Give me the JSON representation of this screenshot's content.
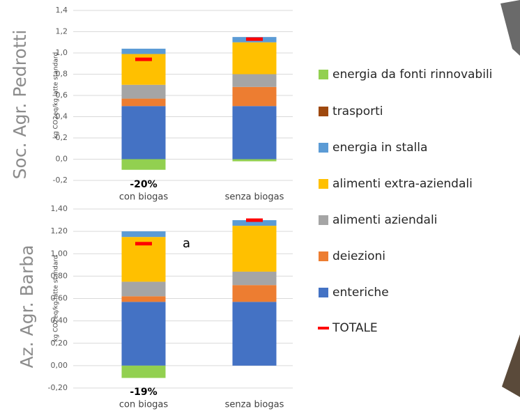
{
  "chart_data": [
    {
      "type": "stacked_bar",
      "title": "Soc. Agr. Pedrotti",
      "ylabel": "kg CO2eq/kg latte standard",
      "categories": [
        "con biogas",
        "senza biogas"
      ],
      "ylim": [
        -0.2,
        1.4
      ],
      "yticks": [
        {
          "value": -0.2,
          "label": "-0,2"
        },
        {
          "value": 0,
          "label": "0,0"
        },
        {
          "value": 0.2,
          "label": "0,2"
        },
        {
          "value": 0.4,
          "label": "0,4"
        },
        {
          "value": 0.6,
          "label": "0,6"
        },
        {
          "value": 0.8,
          "label": "0,8"
        },
        {
          "value": 1.0,
          "label": "1,0"
        },
        {
          "value": 1.2,
          "label": "1,2"
        },
        {
          "value": 1.4,
          "label": "1,4"
        }
      ],
      "grid": true,
      "series": [
        {
          "name": "energia da fonti rinnovabili",
          "color": "#92d050",
          "values": [
            -0.1,
            -0.02
          ]
        },
        {
          "name": "trasporti",
          "color": "#9e480e",
          "values": [
            0,
            0
          ]
        },
        {
          "name": "energia in stalla",
          "color": "#5b9bd5",
          "values": [
            0.05,
            0.05
          ]
        },
        {
          "name": "alimenti extra-aziendali",
          "color": "#ffc000",
          "values": [
            0.29,
            0.3
          ]
        },
        {
          "name": "alimenti aziendali",
          "color": "#a5a5a5",
          "values": [
            0.13,
            0.12
          ]
        },
        {
          "name": "deiezioni",
          "color": "#ed7d31",
          "values": [
            0.07,
            0.18
          ]
        },
        {
          "name": "enteriche",
          "color": "#4472c4",
          "values": [
            0.5,
            0.5
          ]
        }
      ],
      "totale": {
        "name": "TOTALE",
        "color": "#ff0000",
        "values": [
          0.94,
          1.13
        ]
      },
      "annotation": "-20%"
    },
    {
      "type": "stacked_bar",
      "title": "Az. Agr. Barba",
      "ylabel": "kg CO2eq/kg latte standard",
      "categories": [
        "con biogas",
        "senza biogas"
      ],
      "ylim": [
        -0.2,
        1.4
      ],
      "yticks": [
        {
          "value": -0.2,
          "label": "-0,20"
        },
        {
          "value": 0,
          "label": "0,00"
        },
        {
          "value": 0.2,
          "label": "0,20"
        },
        {
          "value": 0.4,
          "label": "0,40"
        },
        {
          "value": 0.6,
          "label": "0,60"
        },
        {
          "value": 0.8,
          "label": "0,80"
        },
        {
          "value": 1.0,
          "label": "1,00"
        },
        {
          "value": 1.2,
          "label": "1,20"
        },
        {
          "value": 1.4,
          "label": "1,40"
        }
      ],
      "grid": true,
      "series": [
        {
          "name": "energia da fonti rinnovabili",
          "color": "#92d050",
          "values": [
            -0.11,
            0
          ]
        },
        {
          "name": "trasporti",
          "color": "#9e480e",
          "values": [
            0,
            0
          ]
        },
        {
          "name": "energia in stalla",
          "color": "#5b9bd5",
          "values": [
            0.05,
            0.05
          ]
        },
        {
          "name": "alimenti extra-aziendali",
          "color": "#ffc000",
          "values": [
            0.4,
            0.41
          ]
        },
        {
          "name": "alimenti aziendali",
          "color": "#a5a5a5",
          "values": [
            0.13,
            0.12
          ]
        },
        {
          "name": "deiezioni",
          "color": "#ed7d31",
          "values": [
            0.05,
            0.15
          ]
        },
        {
          "name": "enteriche",
          "color": "#4472c4",
          "values": [
            0.57,
            0.57
          ]
        }
      ],
      "totale": {
        "name": "TOTALE",
        "color": "#ff0000",
        "values": [
          1.09,
          1.3
        ]
      },
      "annotation": "-19%"
    }
  ],
  "cropped_text": "a"
}
